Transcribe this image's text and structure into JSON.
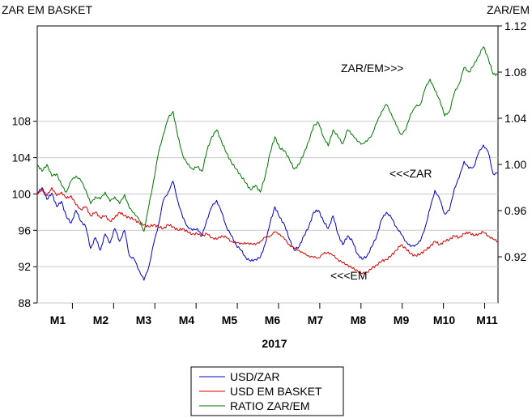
{
  "chart_data": {
    "type": "line",
    "left_axis_title": "ZAR EM BASKET",
    "right_axis_title": "ZAR/EM",
    "xlabel": "2017",
    "x_ticks": [
      "M1",
      "M2",
      "M3",
      "M4",
      "M5",
      "M6",
      "M7",
      "M8",
      "M9",
      "M10",
      "M11"
    ],
    "y_left": {
      "ticks": [
        88,
        92,
        96,
        100,
        104,
        108
      ],
      "ylim": [
        88,
        118.5
      ]
    },
    "y_right": {
      "ticks": [
        "0.92",
        "0.96",
        "1.00",
        "1.04",
        "1.08",
        "1.12"
      ],
      "ylim": [
        0.88,
        1.12
      ]
    },
    "grid": true,
    "legend_position": "bottom-center",
    "annotations": [
      {
        "text": "ZAR/EM>>>",
        "series": "RATIO ZAR/EM"
      },
      {
        "text": "<<<ZAR",
        "series": "USD/ZAR"
      },
      {
        "text": "<<<EM",
        "series": "USD EM BASKET"
      }
    ],
    "series": [
      {
        "name": "USD/ZAR",
        "axis": "left",
        "color": "#0000cc",
        "points": [
          [
            0.0,
            100.0
          ],
          [
            0.2,
            100.7
          ],
          [
            0.4,
            99.4
          ],
          [
            0.6,
            100.1
          ],
          [
            0.8,
            98.6
          ],
          [
            1.0,
            99.2
          ],
          [
            1.2,
            97.5
          ],
          [
            1.4,
            96.8
          ],
          [
            1.6,
            98.2
          ],
          [
            1.8,
            97.0
          ],
          [
            2.0,
            96.4
          ],
          [
            2.2,
            94.0
          ],
          [
            2.4,
            95.2
          ],
          [
            2.6,
            93.8
          ],
          [
            2.8,
            95.6
          ],
          [
            3.0,
            94.6
          ],
          [
            3.2,
            96.2
          ],
          [
            3.4,
            94.8
          ],
          [
            3.6,
            96.0
          ],
          [
            3.8,
            93.2
          ],
          [
            4.0,
            92.8
          ],
          [
            4.2,
            91.6
          ],
          [
            4.4,
            90.5
          ],
          [
            4.6,
            92.0
          ],
          [
            4.8,
            94.5
          ],
          [
            5.0,
            96.6
          ],
          [
            5.2,
            99.3
          ],
          [
            5.4,
            100.2
          ],
          [
            5.6,
            101.4
          ],
          [
            5.8,
            99.2
          ],
          [
            6.0,
            97.4
          ],
          [
            6.2,
            96.4
          ],
          [
            6.4,
            96.0
          ],
          [
            6.6,
            96.2
          ],
          [
            6.8,
            95.4
          ],
          [
            7.0,
            97.2
          ],
          [
            7.2,
            98.6
          ],
          [
            7.4,
            99.3
          ],
          [
            7.6,
            98.0
          ],
          [
            7.8,
            96.4
          ],
          [
            8.0,
            95.4
          ],
          [
            8.2,
            94.4
          ],
          [
            8.4,
            93.8
          ],
          [
            8.6,
            93.0
          ],
          [
            8.8,
            92.6
          ],
          [
            9.0,
            92.8
          ],
          [
            9.2,
            93.0
          ],
          [
            9.4,
            94.5
          ],
          [
            9.6,
            96.8
          ],
          [
            9.8,
            98.6
          ],
          [
            10.0,
            97.4
          ],
          [
            10.2,
            96.6
          ],
          [
            10.4,
            95.0
          ],
          [
            10.6,
            93.8
          ],
          [
            10.8,
            94.2
          ],
          [
            11.0,
            95.4
          ],
          [
            11.2,
            96.4
          ],
          [
            11.4,
            98.0
          ],
          [
            11.6,
            98.2
          ],
          [
            11.8,
            97.0
          ],
          [
            12.0,
            96.2
          ],
          [
            12.2,
            97.6
          ],
          [
            12.4,
            95.6
          ],
          [
            12.6,
            94.4
          ],
          [
            12.8,
            95.4
          ],
          [
            13.0,
            94.8
          ],
          [
            13.2,
            93.4
          ],
          [
            13.4,
            92.8
          ],
          [
            13.6,
            93.2
          ],
          [
            13.8,
            94.2
          ],
          [
            14.0,
            95.4
          ],
          [
            14.2,
            97.2
          ],
          [
            14.4,
            98.0
          ],
          [
            14.6,
            97.4
          ],
          [
            14.8,
            96.4
          ],
          [
            15.0,
            95.6
          ],
          [
            15.2,
            94.8
          ],
          [
            15.4,
            94.2
          ],
          [
            15.6,
            94.4
          ],
          [
            15.8,
            94.8
          ],
          [
            16.0,
            96.4
          ],
          [
            16.2,
            98.4
          ],
          [
            16.4,
            100.4
          ],
          [
            16.6,
            99.4
          ],
          [
            16.8,
            97.8
          ],
          [
            17.0,
            98.2
          ],
          [
            17.2,
            100.6
          ],
          [
            17.4,
            101.8
          ],
          [
            17.6,
            103.6
          ],
          [
            17.8,
            102.8
          ],
          [
            18.0,
            103.0
          ],
          [
            18.2,
            104.5
          ],
          [
            18.4,
            105.4
          ],
          [
            18.6,
            104.6
          ],
          [
            18.8,
            102.2
          ],
          [
            19.0,
            102.3
          ]
        ]
      },
      {
        "name": "USD EM BASKET",
        "axis": "left",
        "color": "#dd0000",
        "points": [
          [
            0.0,
            100.0
          ],
          [
            0.2,
            100.5
          ],
          [
            0.4,
            99.8
          ],
          [
            0.6,
            100.7
          ],
          [
            0.8,
            99.8
          ],
          [
            1.0,
            100.2
          ],
          [
            1.2,
            99.5
          ],
          [
            1.4,
            99.8
          ],
          [
            1.6,
            98.8
          ],
          [
            1.8,
            98.3
          ],
          [
            2.0,
            98.6
          ],
          [
            2.2,
            97.6
          ],
          [
            2.4,
            98.0
          ],
          [
            2.6,
            97.4
          ],
          [
            2.8,
            97.6
          ],
          [
            3.0,
            97.0
          ],
          [
            3.2,
            97.4
          ],
          [
            3.4,
            98.0
          ],
          [
            3.6,
            97.6
          ],
          [
            3.8,
            97.4
          ],
          [
            4.0,
            97.2
          ],
          [
            4.2,
            96.8
          ],
          [
            4.4,
            96.6
          ],
          [
            4.6,
            96.4
          ],
          [
            4.8,
            96.6
          ],
          [
            5.0,
            96.4
          ],
          [
            5.2,
            96.2
          ],
          [
            5.4,
            96.6
          ],
          [
            5.6,
            96.4
          ],
          [
            5.8,
            96.0
          ],
          [
            6.0,
            96.2
          ],
          [
            6.2,
            95.8
          ],
          [
            6.4,
            95.6
          ],
          [
            6.6,
            95.6
          ],
          [
            6.8,
            95.4
          ],
          [
            7.0,
            95.6
          ],
          [
            7.2,
            95.2
          ],
          [
            7.4,
            95.0
          ],
          [
            7.6,
            95.4
          ],
          [
            7.8,
            95.2
          ],
          [
            8.0,
            94.8
          ],
          [
            8.2,
            94.6
          ],
          [
            8.4,
            94.6
          ],
          [
            8.6,
            94.5
          ],
          [
            8.8,
            94.6
          ],
          [
            9.0,
            94.4
          ],
          [
            9.2,
            94.8
          ],
          [
            9.4,
            95.2
          ],
          [
            9.6,
            95.4
          ],
          [
            9.8,
            95.8
          ],
          [
            10.0,
            95.6
          ],
          [
            10.2,
            95.0
          ],
          [
            10.4,
            94.4
          ],
          [
            10.6,
            94.0
          ],
          [
            10.8,
            93.8
          ],
          [
            11.0,
            93.4
          ],
          [
            11.2,
            93.2
          ],
          [
            11.4,
            93.0
          ],
          [
            11.6,
            93.0
          ],
          [
            11.8,
            93.4
          ],
          [
            12.0,
            93.6
          ],
          [
            12.2,
            93.2
          ],
          [
            12.4,
            92.8
          ],
          [
            12.6,
            92.4
          ],
          [
            12.8,
            92.2
          ],
          [
            13.0,
            91.8
          ],
          [
            13.2,
            91.6
          ],
          [
            13.4,
            91.2
          ],
          [
            13.6,
            91.4
          ],
          [
            13.8,
            91.8
          ],
          [
            14.0,
            92.2
          ],
          [
            14.2,
            92.6
          ],
          [
            14.4,
            92.8
          ],
          [
            14.6,
            93.2
          ],
          [
            14.8,
            93.8
          ],
          [
            15.0,
            94.4
          ],
          [
            15.2,
            94.0
          ],
          [
            15.4,
            93.4
          ],
          [
            15.6,
            93.2
          ],
          [
            15.8,
            93.4
          ],
          [
            16.0,
            93.8
          ],
          [
            16.2,
            94.2
          ],
          [
            16.4,
            94.8
          ],
          [
            16.6,
            94.4
          ],
          [
            16.8,
            94.8
          ],
          [
            17.0,
            95.0
          ],
          [
            17.2,
            95.4
          ],
          [
            17.4,
            95.2
          ],
          [
            17.6,
            95.6
          ],
          [
            17.8,
            95.8
          ],
          [
            18.0,
            95.4
          ],
          [
            18.2,
            95.6
          ],
          [
            18.4,
            95.8
          ],
          [
            18.6,
            95.4
          ],
          [
            18.8,
            95.0
          ],
          [
            19.0,
            94.8
          ]
        ]
      },
      {
        "name": "RATIO ZAR/EM",
        "axis": "right",
        "color": "#007700",
        "points": [
          [
            0.0,
            1.0
          ],
          [
            0.2,
            0.994
          ],
          [
            0.4,
            1.0
          ],
          [
            0.6,
            0.99
          ],
          [
            0.8,
            0.992
          ],
          [
            1.0,
            0.982
          ],
          [
            1.2,
            0.976
          ],
          [
            1.4,
            0.986
          ],
          [
            1.6,
            0.99
          ],
          [
            1.8,
            0.986
          ],
          [
            2.0,
            0.978
          ],
          [
            2.2,
            0.966
          ],
          [
            2.4,
            0.972
          ],
          [
            2.6,
            0.97
          ],
          [
            2.8,
            0.976
          ],
          [
            3.0,
            0.968
          ],
          [
            3.2,
            0.972
          ],
          [
            3.4,
            0.966
          ],
          [
            3.6,
            0.974
          ],
          [
            3.8,
            0.962
          ],
          [
            4.0,
            0.958
          ],
          [
            4.2,
            0.952
          ],
          [
            4.4,
            0.942
          ],
          [
            4.6,
            0.964
          ],
          [
            4.8,
            0.986
          ],
          [
            5.0,
            1.01
          ],
          [
            5.2,
            1.026
          ],
          [
            5.4,
            1.04
          ],
          [
            5.6,
            1.046
          ],
          [
            5.8,
            1.024
          ],
          [
            6.0,
            1.008
          ],
          [
            6.2,
            1.0
          ],
          [
            6.4,
            0.996
          ],
          [
            6.6,
            0.998
          ],
          [
            6.8,
            0.994
          ],
          [
            7.0,
            1.012
          ],
          [
            7.2,
            1.024
          ],
          [
            7.4,
            1.03
          ],
          [
            7.6,
            1.02
          ],
          [
            7.8,
            1.01
          ],
          [
            8.0,
            1.002
          ],
          [
            8.2,
            0.996
          ],
          [
            8.4,
            0.99
          ],
          [
            8.6,
            0.984
          ],
          [
            8.8,
            0.978
          ],
          [
            9.0,
            0.982
          ],
          [
            9.2,
            0.976
          ],
          [
            9.4,
            0.99
          ],
          [
            9.6,
            1.01
          ],
          [
            9.8,
            1.024
          ],
          [
            10.0,
            1.014
          ],
          [
            10.2,
            1.012
          ],
          [
            10.4,
            1.004
          ],
          [
            10.6,
            0.996
          ],
          [
            10.8,
            1.0
          ],
          [
            11.0,
            1.01
          ],
          [
            11.2,
            1.02
          ],
          [
            11.4,
            1.034
          ],
          [
            11.6,
            1.036
          ],
          [
            11.8,
            1.024
          ],
          [
            12.0,
            1.016
          ],
          [
            12.2,
            1.03
          ],
          [
            12.4,
            1.024
          ],
          [
            12.6,
            1.018
          ],
          [
            12.8,
            1.03
          ],
          [
            13.0,
            1.026
          ],
          [
            13.2,
            1.02
          ],
          [
            13.4,
            1.018
          ],
          [
            13.6,
            1.02
          ],
          [
            13.8,
            1.026
          ],
          [
            14.0,
            1.036
          ],
          [
            14.2,
            1.046
          ],
          [
            14.4,
            1.052
          ],
          [
            14.6,
            1.044
          ],
          [
            14.8,
            1.034
          ],
          [
            15.0,
            1.026
          ],
          [
            15.2,
            1.03
          ],
          [
            15.4,
            1.044
          ],
          [
            15.6,
            1.05
          ],
          [
            15.8,
            1.052
          ],
          [
            16.0,
            1.066
          ],
          [
            16.2,
            1.074
          ],
          [
            16.4,
            1.064
          ],
          [
            16.6,
            1.056
          ],
          [
            16.8,
            1.042
          ],
          [
            17.0,
            1.046
          ],
          [
            17.2,
            1.062
          ],
          [
            17.4,
            1.07
          ],
          [
            17.6,
            1.084
          ],
          [
            17.8,
            1.08
          ],
          [
            18.0,
            1.086
          ],
          [
            18.2,
            1.094
          ],
          [
            18.4,
            1.102
          ],
          [
            18.6,
            1.092
          ],
          [
            18.8,
            1.078
          ],
          [
            19.0,
            1.078
          ]
        ]
      }
    ]
  }
}
